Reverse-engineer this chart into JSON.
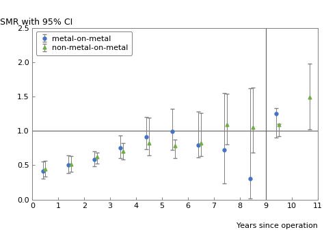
{
  "title": "SMR with 95% CI",
  "xlabel": "Years since operation",
  "ylabel": "",
  "ylim": [
    0.0,
    2.5
  ],
  "xlim": [
    0,
    11
  ],
  "yticks": [
    0.0,
    0.5,
    1.0,
    1.5,
    2.0,
    2.5
  ],
  "xticks": [
    0,
    1,
    2,
    3,
    4,
    5,
    6,
    7,
    8,
    9,
    10,
    11
  ],
  "reference_line_y": 1.0,
  "vertical_line_x": 9.0,
  "mom": {
    "x": [
      0.4,
      1.4,
      2.4,
      3.4,
      4.4,
      5.4,
      6.4,
      7.4,
      8.4,
      9.4
    ],
    "y": [
      0.41,
      0.5,
      0.58,
      0.75,
      0.91,
      0.99,
      0.79,
      0.72,
      0.3,
      1.25
    ],
    "ci_lo": [
      0.3,
      0.38,
      0.48,
      0.6,
      0.73,
      0.72,
      0.61,
      0.23,
      0.02,
      0.9
    ],
    "ci_hi": [
      0.55,
      0.64,
      0.7,
      0.93,
      1.2,
      1.32,
      1.28,
      1.55,
      1.62,
      1.33
    ],
    "color": "#4472c4",
    "marker": "o",
    "label": "metal-on-metal"
  },
  "nmom": {
    "x": [
      0.5,
      1.5,
      2.5,
      3.5,
      4.5,
      5.5,
      6.5,
      7.5,
      8.5,
      9.5,
      10.7
    ],
    "y": [
      0.44,
      0.51,
      0.62,
      0.7,
      0.82,
      0.78,
      0.82,
      1.09,
      1.05,
      1.09,
      1.49
    ],
    "ci_lo": [
      0.33,
      0.4,
      0.52,
      0.58,
      0.64,
      0.6,
      0.63,
      0.8,
      0.68,
      0.92,
      1.02
    ],
    "ci_hi": [
      0.56,
      0.63,
      0.68,
      0.82,
      1.19,
      0.87,
      1.26,
      1.54,
      1.63,
      1.1,
      1.98
    ],
    "color": "#70ad47",
    "marker": "^",
    "label": "non-metal-on-metal"
  },
  "background_color": "#ffffff",
  "title_fontsize": 9,
  "label_fontsize": 8,
  "tick_fontsize": 8,
  "legend_fontsize": 8,
  "markersize": 3.5,
  "capsize": 2,
  "elinewidth": 0.7,
  "linewidth_spine": 0.7
}
